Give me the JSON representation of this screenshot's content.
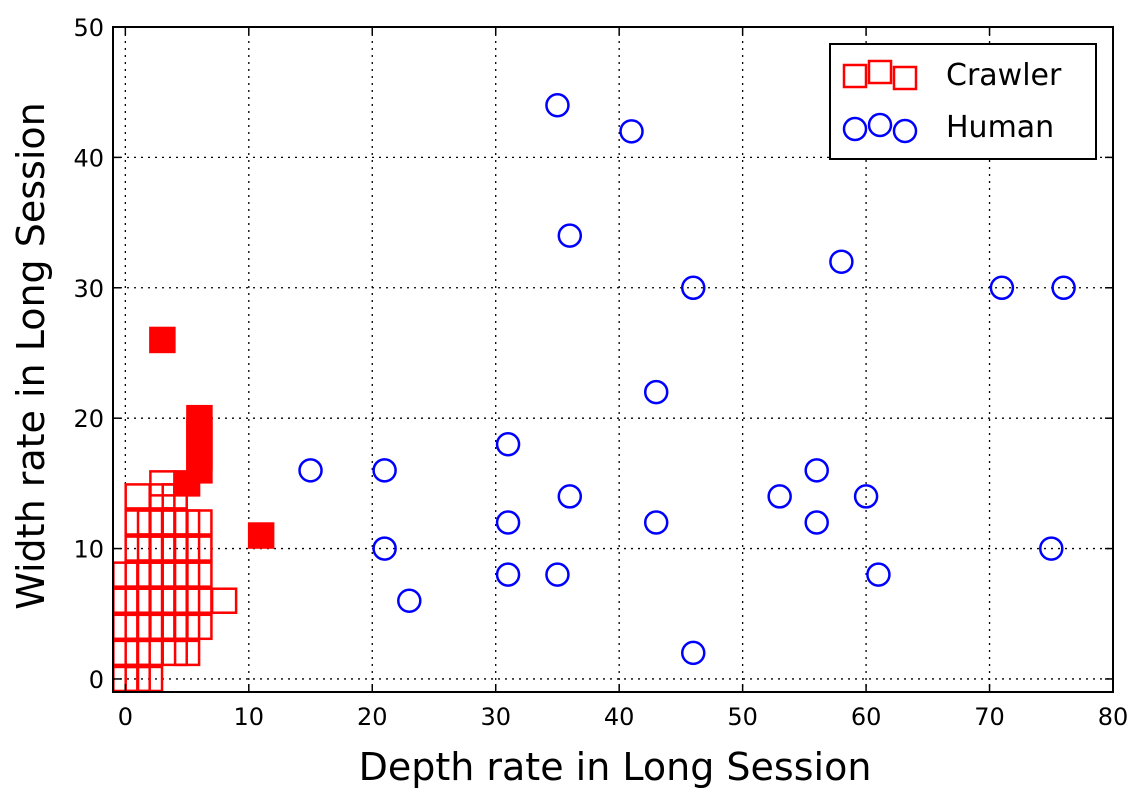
{
  "chart_data": {
    "type": "scatter",
    "title": "",
    "xlabel": "Depth rate in Long Session",
    "ylabel": "Width rate in Long Session",
    "xlim": [
      -1,
      80
    ],
    "ylim": [
      -1,
      50
    ],
    "x_ticks": [
      0,
      10,
      20,
      30,
      40,
      50,
      60,
      70,
      80
    ],
    "y_ticks": [
      0,
      10,
      20,
      30,
      40,
      50
    ],
    "grid": true,
    "legend_position": "top-right",
    "series": [
      {
        "name": "Crawler",
        "marker": "square",
        "color": "#ff0000",
        "points": [
          {
            "x": 0,
            "y": 0
          },
          {
            "x": 1,
            "y": 0
          },
          {
            "x": 2,
            "y": 0
          },
          {
            "x": 0,
            "y": 2
          },
          {
            "x": 1,
            "y": 2
          },
          {
            "x": 2,
            "y": 2
          },
          {
            "x": 4,
            "y": 2
          },
          {
            "x": 5,
            "y": 2
          },
          {
            "x": 0,
            "y": 4
          },
          {
            "x": 1,
            "y": 4
          },
          {
            "x": 2,
            "y": 4
          },
          {
            "x": 3,
            "y": 4
          },
          {
            "x": 4,
            "y": 4
          },
          {
            "x": 5,
            "y": 4
          },
          {
            "x": 6,
            "y": 4
          },
          {
            "x": 0,
            "y": 6
          },
          {
            "x": 1,
            "y": 6
          },
          {
            "x": 2,
            "y": 6
          },
          {
            "x": 3,
            "y": 6
          },
          {
            "x": 4,
            "y": 6
          },
          {
            "x": 5,
            "y": 6
          },
          {
            "x": 6,
            "y": 6
          },
          {
            "x": 8,
            "y": 6
          },
          {
            "x": 0,
            "y": 8
          },
          {
            "x": 1,
            "y": 8
          },
          {
            "x": 2,
            "y": 8
          },
          {
            "x": 3,
            "y": 8
          },
          {
            "x": 4,
            "y": 8
          },
          {
            "x": 5,
            "y": 8
          },
          {
            "x": 6,
            "y": 8
          },
          {
            "x": 1,
            "y": 10
          },
          {
            "x": 2,
            "y": 10
          },
          {
            "x": 3,
            "y": 10
          },
          {
            "x": 4,
            "y": 10
          },
          {
            "x": 5,
            "y": 10
          },
          {
            "x": 6,
            "y": 10
          },
          {
            "x": 1,
            "y": 12
          },
          {
            "x": 2,
            "y": 12
          },
          {
            "x": 3,
            "y": 12
          },
          {
            "x": 4,
            "y": 12
          },
          {
            "x": 5,
            "y": 12
          },
          {
            "x": 6,
            "y": 12
          },
          {
            "x": 1,
            "y": 14
          },
          {
            "x": 3,
            "y": 14
          },
          {
            "x": 4,
            "y": 14
          },
          {
            "x": 3,
            "y": 15
          },
          {
            "x": 5,
            "y": 15,
            "filled": true
          },
          {
            "x": 6,
            "y": 16,
            "filled": true
          },
          {
            "x": 6,
            "y": 17,
            "filled": true
          },
          {
            "x": 6,
            "y": 18,
            "filled": true
          },
          {
            "x": 6,
            "y": 19,
            "filled": true
          },
          {
            "x": 6,
            "y": 20,
            "filled": true
          },
          {
            "x": 3,
            "y": 26,
            "filled": true
          },
          {
            "x": 11,
            "y": 11,
            "filled": true
          }
        ]
      },
      {
        "name": "Human",
        "marker": "circle",
        "color": "#0000ff",
        "points": [
          {
            "x": 15,
            "y": 16
          },
          {
            "x": 21,
            "y": 16
          },
          {
            "x": 21,
            "y": 10
          },
          {
            "x": 23,
            "y": 6
          },
          {
            "x": 31,
            "y": 18
          },
          {
            "x": 31,
            "y": 12
          },
          {
            "x": 31,
            "y": 8
          },
          {
            "x": 35,
            "y": 8
          },
          {
            "x": 35,
            "y": 44
          },
          {
            "x": 36,
            "y": 34
          },
          {
            "x": 36,
            "y": 14
          },
          {
            "x": 41,
            "y": 42
          },
          {
            "x": 43,
            "y": 22
          },
          {
            "x": 43,
            "y": 12
          },
          {
            "x": 46,
            "y": 30
          },
          {
            "x": 46,
            "y": 2
          },
          {
            "x": 53,
            "y": 14
          },
          {
            "x": 56,
            "y": 16
          },
          {
            "x": 56,
            "y": 12
          },
          {
            "x": 58,
            "y": 32
          },
          {
            "x": 60,
            "y": 14
          },
          {
            "x": 61,
            "y": 8
          },
          {
            "x": 71,
            "y": 30
          },
          {
            "x": 75,
            "y": 10
          },
          {
            "x": 76,
            "y": 30
          }
        ]
      }
    ]
  }
}
